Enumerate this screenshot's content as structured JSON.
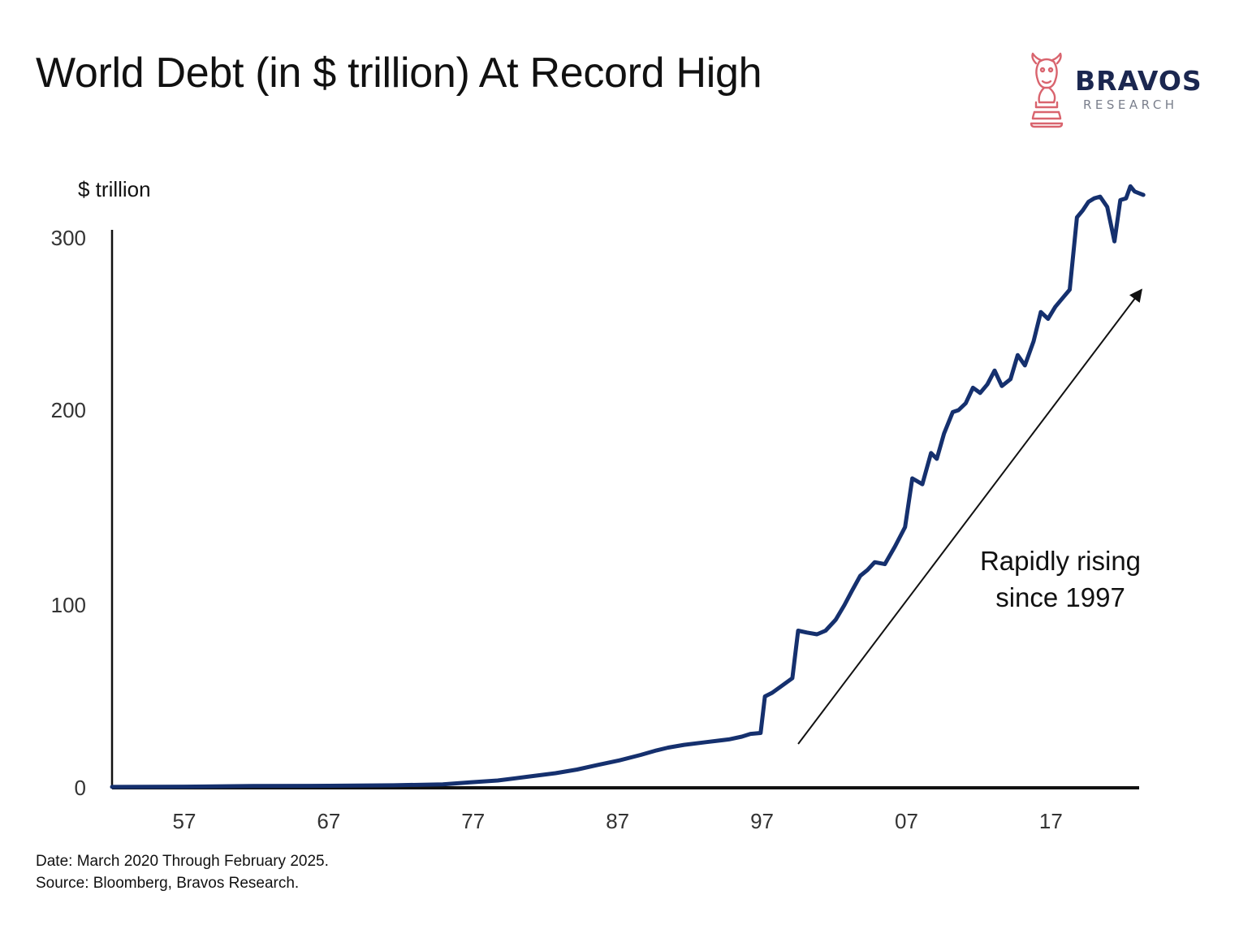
{
  "title": "World Debt (in $ trillion) At Record High",
  "logo": {
    "name": "BRAVOS",
    "subtitle": "RESEARCH",
    "icon": "bull-chess-knight-icon",
    "color": "#d9646e"
  },
  "footnotes": {
    "date": "Date: March 2020 Through February 2025.",
    "source": "Source: Bloomberg, Bravos Research."
  },
  "chart_data": {
    "type": "line",
    "title": "World Debt (in $ trillion) At Record High",
    "ylabel": "$ trillion",
    "xlabel": "",
    "xlim": [
      1952,
      2023.5
    ],
    "ylim": [
      0,
      300
    ],
    "y_scale": "piecewise-linear",
    "y_scale_breaks": [
      0,
      100,
      200,
      300
    ],
    "yticks": [
      0,
      100,
      200,
      300
    ],
    "ytick_labels": [
      "0",
      "100",
      "200",
      "300"
    ],
    "xticks": [
      1957,
      1967,
      1977,
      1987,
      1997,
      2007,
      2017
    ],
    "xtick_labels": [
      "57",
      "67",
      "77",
      "87",
      "97",
      "07",
      "17"
    ],
    "grid": false,
    "legend": "none",
    "line_color": "#15306e",
    "annotation": {
      "lines": [
        "Rapidly rising",
        "since 1997"
      ],
      "arrow_from": [
        1999.5,
        24
      ],
      "arrow_to": [
        2023.5,
        270
      ]
    },
    "series": [
      {
        "name": "",
        "x": [
          1952,
          1957,
          1961.7,
          1967,
          1971.5,
          1974.9,
          1976.8,
          1978.7,
          1980.7,
          1982.7,
          1984.2,
          1985.6,
          1987.1,
          1988.6,
          1989.7,
          1990.5,
          1991.6,
          1993.1,
          1994.7,
          1995.6,
          1996.2,
          1996.9,
          1997.2,
          1997.7,
          1998.4,
          1999.1,
          1999.5,
          2000.1,
          2000.8,
          2001.4,
          2002.1,
          2002.7,
          2003.2,
          2003.8,
          2004.3,
          2004.8,
          2005.5,
          2006.2,
          2006.9,
          2007.4,
          2008.1,
          2008.7,
          2009.1,
          2009.6,
          2010.2,
          2010.6,
          2011.1,
          2011.6,
          2012.1,
          2012.6,
          2013.1,
          2013.6,
          2014.2,
          2014.7,
          2015.2,
          2015.8,
          2016.3,
          2016.8,
          2017.3,
          2017.8,
          2018.3,
          2018.8,
          2019.2,
          2019.6,
          2020.0,
          2020.4,
          2020.9,
          2021.4,
          2021.8,
          2022.2,
          2022.5,
          2022.8,
          2023.1,
          2023.4
        ],
        "y": [
          0.5,
          0.6,
          1.0,
          1.1,
          1.4,
          1.9,
          3.0,
          4.0,
          6.0,
          8.0,
          10.0,
          12.5,
          15.0,
          18.0,
          20.5,
          22.0,
          23.5,
          25.0,
          26.5,
          28.0,
          29.5,
          30.0,
          50.0,
          52.0,
          56.0,
          60.0,
          86.0,
          85.0,
          84.0,
          86.0,
          92.0,
          100.0,
          107.0,
          115.0,
          118.0,
          122.0,
          121.0,
          130.0,
          140.0,
          165.0,
          162.0,
          178.0,
          175.0,
          188.0,
          199.0,
          200.0,
          204.0,
          213.0,
          210.0,
          215.0,
          223.0,
          214.0,
          218.0,
          232.0,
          226.0,
          240.0,
          257.0,
          253.0,
          260.0,
          265.0,
          270.0,
          312.0,
          316.0,
          321.0,
          323.0,
          324.0,
          318.0,
          298.0,
          322.0,
          323.0,
          330.0,
          327.0,
          326.0,
          325.0
        ]
      }
    ]
  }
}
